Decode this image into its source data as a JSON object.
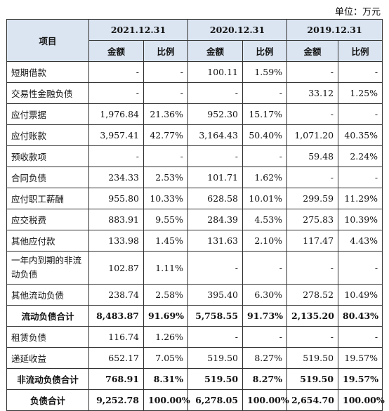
{
  "unit_label": "单位：万元",
  "header": {
    "item": "项目",
    "years": [
      "2021.12.31",
      "2020.12.31",
      "2019.12.31"
    ],
    "amount": "金额",
    "ratio": "比例"
  },
  "rows": [
    {
      "label": "短期借款",
      "bold": false,
      "cells": [
        "-",
        "-",
        "100.11",
        "1.59%",
        "-",
        "-"
      ]
    },
    {
      "label": "交易性金融负债",
      "bold": false,
      "cells": [
        "-",
        "-",
        "-",
        "-",
        "33.12",
        "1.25%"
      ]
    },
    {
      "label": "应付票据",
      "bold": false,
      "cells": [
        "1,976.84",
        "21.36%",
        "952.30",
        "15.17%",
        "-",
        "-"
      ]
    },
    {
      "label": "应付账款",
      "bold": false,
      "cells": [
        "3,957.41",
        "42.77%",
        "3,164.43",
        "50.40%",
        "1,071.20",
        "40.35%"
      ]
    },
    {
      "label": "预收款项",
      "bold": false,
      "cells": [
        "-",
        "-",
        "-",
        "-",
        "59.48",
        "2.24%"
      ]
    },
    {
      "label": "合同负债",
      "bold": false,
      "cells": [
        "234.33",
        "2.53%",
        "101.71",
        "1.62%",
        "-",
        "-"
      ]
    },
    {
      "label": "应付职工薪酬",
      "bold": false,
      "cells": [
        "955.80",
        "10.33%",
        "628.58",
        "10.01%",
        "299.59",
        "11.29%"
      ]
    },
    {
      "label": "应交税费",
      "bold": false,
      "cells": [
        "883.91",
        "9.55%",
        "284.39",
        "4.53%",
        "275.83",
        "10.39%"
      ]
    },
    {
      "label": "其他应付款",
      "bold": false,
      "cells": [
        "133.98",
        "1.45%",
        "131.63",
        "2.10%",
        "117.47",
        "4.43%"
      ]
    },
    {
      "label": "一年内到期的非流动负债",
      "bold": false,
      "tall": true,
      "cells": [
        "102.87",
        "1.11%",
        "-",
        "-",
        "-",
        "-"
      ]
    },
    {
      "label": "其他流动负债",
      "bold": false,
      "cells": [
        "238.74",
        "2.58%",
        "395.40",
        "6.30%",
        "278.52",
        "10.49%"
      ]
    },
    {
      "label": "流动负债合计",
      "bold": true,
      "cells": [
        "8,483.87",
        "91.69%",
        "5,758.55",
        "91.73%",
        "2,135.20",
        "80.43%"
      ]
    },
    {
      "label": "租赁负债",
      "bold": false,
      "cells": [
        "116.74",
        "1.26%",
        "-",
        "-",
        "-",
        "-"
      ]
    },
    {
      "label": "递延收益",
      "bold": false,
      "cells": [
        "652.17",
        "7.05%",
        "519.50",
        "8.27%",
        "519.50",
        "19.57%"
      ]
    },
    {
      "label": "非流动负债合计",
      "bold": true,
      "cells": [
        "768.91",
        "8.31%",
        "519.50",
        "8.27%",
        "519.50",
        "19.57%"
      ]
    },
    {
      "label": "负债合计",
      "bold": true,
      "cells": [
        "9,252.78",
        "100.00%",
        "6,278.05",
        "100.00%",
        "2,654.70",
        "100.00%"
      ]
    }
  ]
}
